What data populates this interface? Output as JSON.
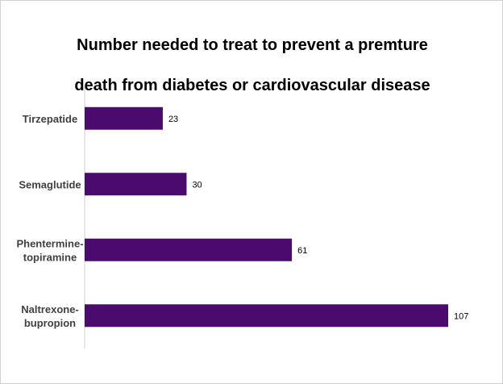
{
  "chart_data": {
    "type": "bar",
    "orientation": "horizontal",
    "title": "Number needed to treat  to prevent a premture death from diabetes or cardiovascular disease",
    "title_lines": [
      "Number needed to treat  to prevent a premture",
      "death from diabetes or cardiovascular disease"
    ],
    "categories": [
      [
        "Tirzepatide"
      ],
      [
        "Semaglutide"
      ],
      [
        "Phentermine-",
        "topiramine"
      ],
      [
        "Naltrexone-",
        "bupropion"
      ]
    ],
    "values": [
      23,
      30,
      61,
      107
    ],
    "data_labels": [
      "23",
      "30",
      "61",
      "107"
    ],
    "xlim": [
      0,
      107
    ],
    "xlabel": "",
    "ylabel": "",
    "grid": false,
    "legend": "none",
    "bar_color": "#4b0a6e",
    "axis_color": "#d0d0d0"
  }
}
